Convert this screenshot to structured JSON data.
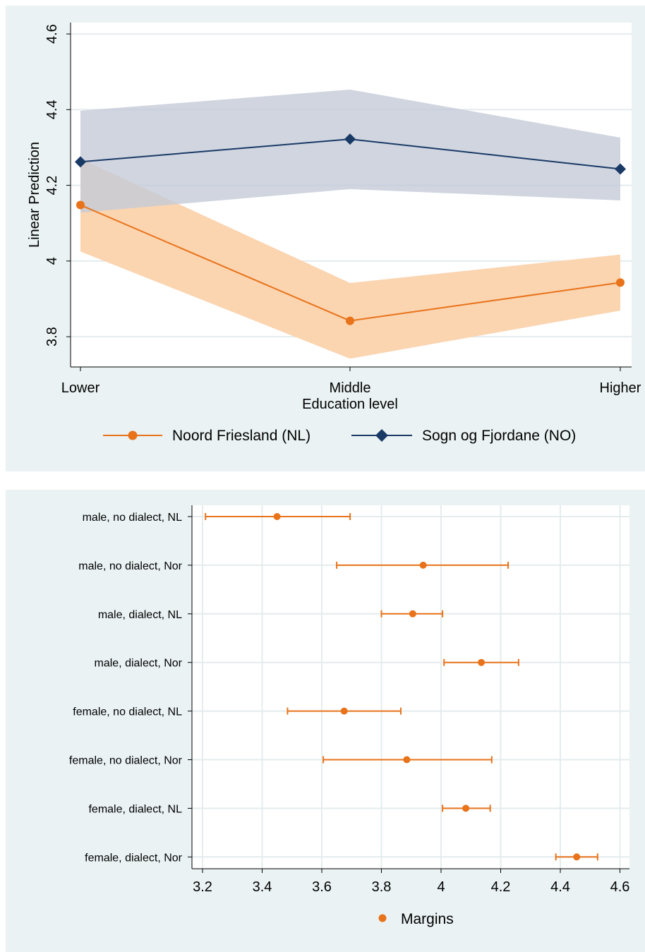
{
  "chart_data": [
    {
      "type": "line",
      "xlabel": "Education level",
      "ylabel": "Linear Prediction",
      "categories": [
        "Lower",
        "Middle",
        "Higher"
      ],
      "ylim": [
        3.72,
        4.63
      ],
      "yticks": [
        3.8,
        4,
        4.2,
        4.4,
        4.6
      ],
      "ytick_labels": [
        "3.8",
        "4",
        "4.2",
        "4.4",
        "4.6"
      ],
      "grid": true,
      "legend_position": "bottom",
      "series": [
        {
          "name": "Noord Friesland (NL)",
          "values": [
            4.148,
            3.842,
            3.943
          ],
          "ci_lower": [
            4.025,
            3.742,
            3.869
          ],
          "ci_upper": [
            4.27,
            3.942,
            4.017
          ],
          "color": "#e8731a",
          "band_color": "#fbd4b0",
          "marker": "circle"
        },
        {
          "name": "Sogn og Fjordane (NO)",
          "values": [
            4.262,
            4.322,
            4.243
          ],
          "ci_lower": [
            4.128,
            4.19,
            4.16
          ],
          "ci_upper": [
            4.397,
            4.453,
            4.326
          ],
          "color": "#1a3a66",
          "band_color": "#c4cbd8",
          "marker": "diamond"
        }
      ]
    },
    {
      "type": "scatter",
      "orientation": "horizontal-error-bars",
      "categories": [
        "male, no dialect, NL",
        "male, no dialect, Nor",
        "male, dialect, NL",
        "male, dialect, Nor",
        "female, no dialect, NL",
        "female, no dialect, Nor",
        "female, dialect, NL",
        "female, dialect, Nor"
      ],
      "xlim": [
        3.17,
        4.63
      ],
      "xticks": [
        3.2,
        3.4,
        3.6,
        3.8,
        4,
        4.2,
        4.4,
        4.6
      ],
      "xtick_labels": [
        "3.2",
        "3.4",
        "3.6",
        "3.8",
        "4",
        "4.2",
        "4.4",
        "4.6"
      ],
      "grid": true,
      "legend_position": "bottom",
      "series": [
        {
          "name": "Margins",
          "values": [
            3.45,
            3.94,
            3.905,
            4.135,
            3.675,
            3.885,
            4.083,
            4.455
          ],
          "ci_lower": [
            3.21,
            3.65,
            3.8,
            4.01,
            3.485,
            3.605,
            4.005,
            4.385
          ],
          "ci_upper": [
            3.695,
            4.225,
            4.005,
            4.26,
            3.865,
            4.17,
            4.165,
            4.525
          ],
          "color": "#e8731a",
          "marker": "circle"
        }
      ]
    }
  ]
}
